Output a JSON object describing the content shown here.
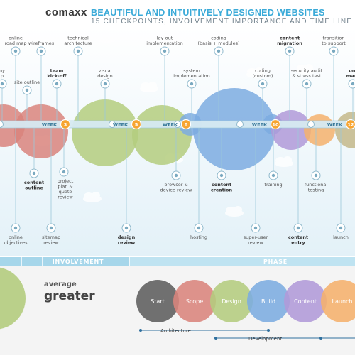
{
  "header": {
    "logo": "comaxx",
    "separator": ":",
    "title": "BEAUTIFUL AND INTUITIVELY DESIGNED WEBSITES",
    "subtitle": "15 CHECKPOINTS, INVOLVEMENT IMPORTANCE AND TIME LINE"
  },
  "colors": {
    "red": "#d9847c",
    "green": "#b4cc7e",
    "blue": "#7cace0",
    "purple": "#b09ad8",
    "orange": "#f5b16c",
    "olive": "#c4b98a",
    "timeline": "#d6eaf2",
    "accent": "#3aaad8"
  },
  "weeks": [
    {
      "label": "WEEK",
      "num": "3"
    },
    {
      "label": "WEEK",
      "num": "5"
    },
    {
      "label": "WEEK",
      "num": "8"
    },
    {
      "label": "WEEK",
      "num": "10"
    },
    {
      "label": "WEEK",
      "num": "12"
    }
  ],
  "checkpoints_top": [
    {
      "lines": [
        "online",
        "road map"
      ],
      "bold": false,
      "icon": "road-map-icon"
    },
    {
      "lines": [
        "wireframes"
      ],
      "bold": false,
      "icon": "wireframes-icon"
    },
    {
      "lines": [
        "technical",
        "architecture"
      ],
      "bold": false,
      "icon": "architecture-icon"
    },
    {
      "lines": [
        "lay-out",
        "implementation"
      ],
      "bold": false,
      "icon": "layout-icon"
    },
    {
      "lines": [
        "coding",
        "(basis + modules)"
      ],
      "bold": false,
      "icon": "code-icon"
    },
    {
      "lines": [
        "content",
        "migration"
      ],
      "bold": true,
      "icon": "migration-icon"
    },
    {
      "lines": [
        "transition",
        "to support"
      ],
      "bold": false,
      "icon": "support-icon"
    },
    {
      "lines": [
        "ny",
        "p"
      ],
      "bold": false,
      "icon": "partial-icon"
    },
    {
      "lines": [
        "site outline"
      ],
      "bold": false,
      "icon": "outline-icon"
    },
    {
      "lines": [
        "team",
        "kick-off"
      ],
      "bold": true,
      "icon": "kickoff-icon"
    },
    {
      "lines": [
        "visual",
        "design"
      ],
      "bold": false,
      "icon": "design-icon"
    },
    {
      "lines": [
        "system",
        "implementation"
      ],
      "bold": false,
      "icon": "system-icon"
    },
    {
      "lines": [
        "coding",
        "(custom)"
      ],
      "bold": false,
      "icon": "custom-code-icon"
    },
    {
      "lines": [
        "security audit",
        "& stress test"
      ],
      "bold": false,
      "icon": "security-icon"
    },
    {
      "lines": [
        "onl",
        "mark"
      ],
      "bold": true,
      "icon": "marketing-icon"
    }
  ],
  "checkpoints_bottom": [
    {
      "lines": [
        "content",
        "outline"
      ],
      "bold": true,
      "icon": "content-outline-icon"
    },
    {
      "lines": [
        "project",
        "plan &",
        "quote",
        "review"
      ],
      "bold": false,
      "icon": "search-icon"
    },
    {
      "lines": [
        "browser &",
        "device review"
      ],
      "bold": false,
      "icon": "browser-icon"
    },
    {
      "lines": [
        "content",
        "creation"
      ],
      "bold": true,
      "icon": "creation-icon"
    },
    {
      "lines": [
        "training"
      ],
      "bold": false,
      "icon": "training-icon"
    },
    {
      "lines": [
        "functional",
        "testing"
      ],
      "bold": false,
      "icon": "testing-icon"
    },
    {
      "lines": [
        "online",
        "objectives"
      ],
      "bold": false,
      "icon": "target-icon"
    },
    {
      "lines": [
        "sitemap",
        "review"
      ],
      "bold": false,
      "icon": "sitemap-icon"
    },
    {
      "lines": [
        "design",
        "review"
      ],
      "bold": true,
      "icon": "eye-icon"
    },
    {
      "lines": [
        "hosting"
      ],
      "bold": false,
      "icon": "hosting-icon"
    },
    {
      "lines": [
        "super-user",
        "review"
      ],
      "bold": false,
      "icon": "user-icon"
    },
    {
      "lines": [
        "content",
        "entry"
      ],
      "bold": true,
      "icon": "entry-icon"
    },
    {
      "lines": [
        "launch"
      ],
      "bold": false,
      "icon": "launch-icon"
    }
  ],
  "bands": {
    "involvement": "INVOLVEMENT",
    "phase": "PHASE"
  },
  "legend": {
    "average": "average",
    "greater": "greater"
  },
  "phases": [
    "Start",
    "Scope",
    "Design",
    "Build",
    "Content",
    "Launch"
  ],
  "tracks": [
    {
      "label": "Architecture"
    },
    {
      "label": "Development"
    }
  ]
}
